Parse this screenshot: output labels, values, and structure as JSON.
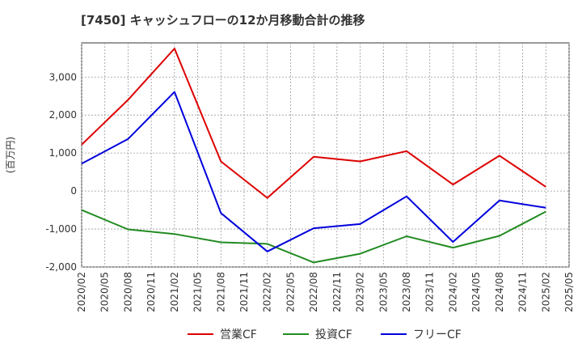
{
  "chart_data": {
    "type": "line",
    "title": "[7450]  キャッシュフローの12か月移動合計の推移",
    "ylabel": "(百万円)",
    "xlabel": "",
    "ylim": [
      -2000,
      3900
    ],
    "yticks": [
      -2000,
      -1000,
      0,
      1000,
      2000,
      3000
    ],
    "ytick_labels": [
      "-2,000",
      "-1,000",
      "0",
      "1,000",
      "2,000",
      "3,000"
    ],
    "x_ticks": [
      "2020/02",
      "2020/05",
      "2020/08",
      "2020/11",
      "2021/02",
      "2021/05",
      "2021/08",
      "2021/11",
      "2022/02",
      "2022/05",
      "2022/08",
      "2022/11",
      "2023/02",
      "2023/05",
      "2023/08",
      "2023/11",
      "2024/02",
      "2024/05",
      "2024/08",
      "2024/11",
      "2025/02",
      "2025/05"
    ],
    "grid": true,
    "legend_position": "bottom",
    "series": [
      {
        "name": "営業CF",
        "color": "#dd0000",
        "x": [
          "2020/02",
          "2020/08",
          "2021/02",
          "2021/08",
          "2022/02",
          "2022/08",
          "2023/02",
          "2023/08",
          "2024/02",
          "2024/08",
          "2025/02"
        ],
        "values": [
          1220,
          2400,
          3750,
          780,
          -180,
          900,
          780,
          1050,
          170,
          930,
          110
        ]
      },
      {
        "name": "投資CF",
        "color": "#228b22",
        "x": [
          "2020/02",
          "2020/08",
          "2021/02",
          "2021/08",
          "2022/02",
          "2022/08",
          "2023/02",
          "2023/08",
          "2024/02",
          "2024/08",
          "2025/02"
        ],
        "values": [
          -500,
          -1010,
          -1130,
          -1350,
          -1390,
          -1880,
          -1650,
          -1190,
          -1490,
          -1180,
          -540
        ]
      },
      {
        "name": "フリーCF",
        "color": "#0000dd",
        "x": [
          "2020/02",
          "2020/08",
          "2021/02",
          "2021/08",
          "2022/02",
          "2022/08",
          "2023/02",
          "2023/08",
          "2024/02",
          "2024/08",
          "2025/02"
        ],
        "values": [
          720,
          1370,
          2610,
          -580,
          -1590,
          -980,
          -870,
          -140,
          -1340,
          -250,
          -440
        ]
      }
    ]
  }
}
